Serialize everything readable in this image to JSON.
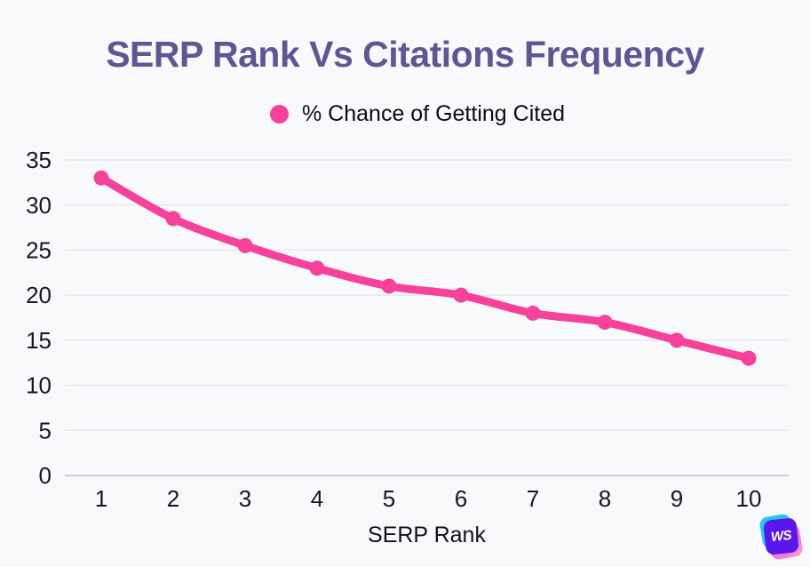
{
  "page": {
    "background_color": "#f8f9fb"
  },
  "header": {
    "title": "SERP Rank Vs Citations Frequency",
    "title_color": "#5e5695"
  },
  "legend": {
    "label": "% Chance of Getting Cited",
    "marker_color": "#f7419a"
  },
  "chart_data": {
    "type": "line",
    "title": "SERP Rank Vs Citations Frequency",
    "xlabel": "SERP Rank",
    "ylabel": "",
    "categories": [
      "1",
      "2",
      "3",
      "4",
      "5",
      "6",
      "7",
      "8",
      "9",
      "10"
    ],
    "series": [
      {
        "name": "% Chance of Getting Cited",
        "color": "#f7419a",
        "values": [
          33,
          28.5,
          25.5,
          23,
          21,
          20,
          18,
          17,
          15,
          13
        ]
      }
    ],
    "ylim": [
      0,
      35
    ],
    "ytick_step": 5,
    "grid": true,
    "legend_position": "top",
    "grid_color": "#e5e6ea",
    "axis_line_color": "#bfc0c5",
    "tick_label_color": "#17181c"
  },
  "logo": {
    "text": "WS",
    "front_color": "#5a17ec",
    "back_top_color": "#24c7f1",
    "back_bottom_color": "#ef76d9"
  }
}
